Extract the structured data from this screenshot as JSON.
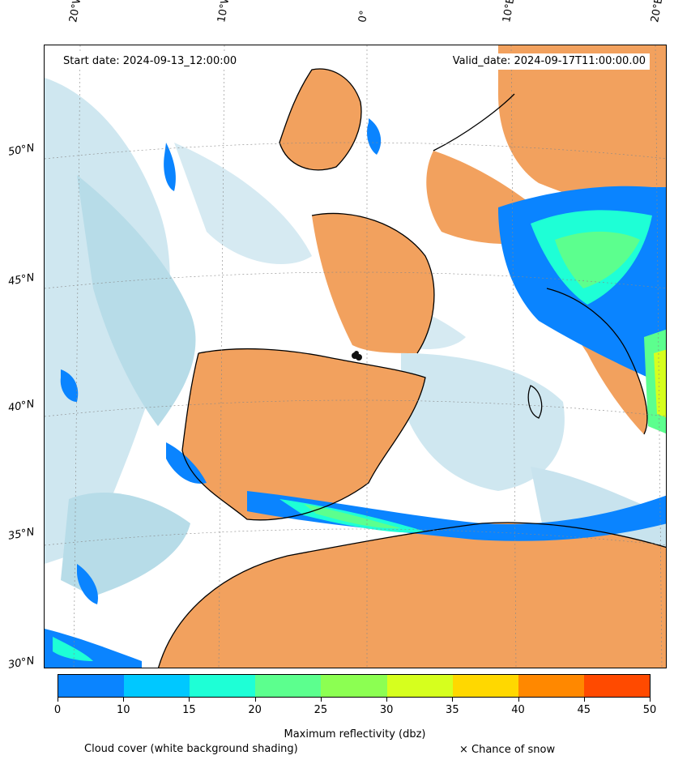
{
  "header": {
    "start_date": "Start date: 2024-09-13_12:00:00",
    "valid_date": "Valid_date: 2024-09-17T11:00:00.00"
  },
  "longitude_labels": [
    "20°W",
    "10°W",
    "0°",
    "10°E",
    "20°E"
  ],
  "latitude_labels": [
    "50°N",
    "45°N",
    "40°N",
    "35°N",
    "30°N"
  ],
  "colorbar": {
    "title": "Maximum reflectivity (dbz)",
    "ticks": [
      "0",
      "10",
      "15",
      "20",
      "25",
      "30",
      "35",
      "40",
      "45",
      "50"
    ],
    "colors": [
      "#0a84ff",
      "#00c8ff",
      "#1effd6",
      "#5cff8e",
      "#8cff52",
      "#d6ff1e",
      "#ffd800",
      "#ff8800",
      "#ff4a00"
    ]
  },
  "legend": {
    "cloud_cover": "Cloud cover (white background shading)",
    "snow": "× Chance of snow"
  },
  "colors": {
    "land": "#f2a15e",
    "cloud_light": "#d4e9f1",
    "cloud_mid": "#b7dce8",
    "rain_weak": "#0a84ff",
    "rain_mid": "#00c8ff",
    "rain_strong": "#1effd6",
    "rain_heavy": "#5cff8e",
    "coastline": "#000000"
  }
}
